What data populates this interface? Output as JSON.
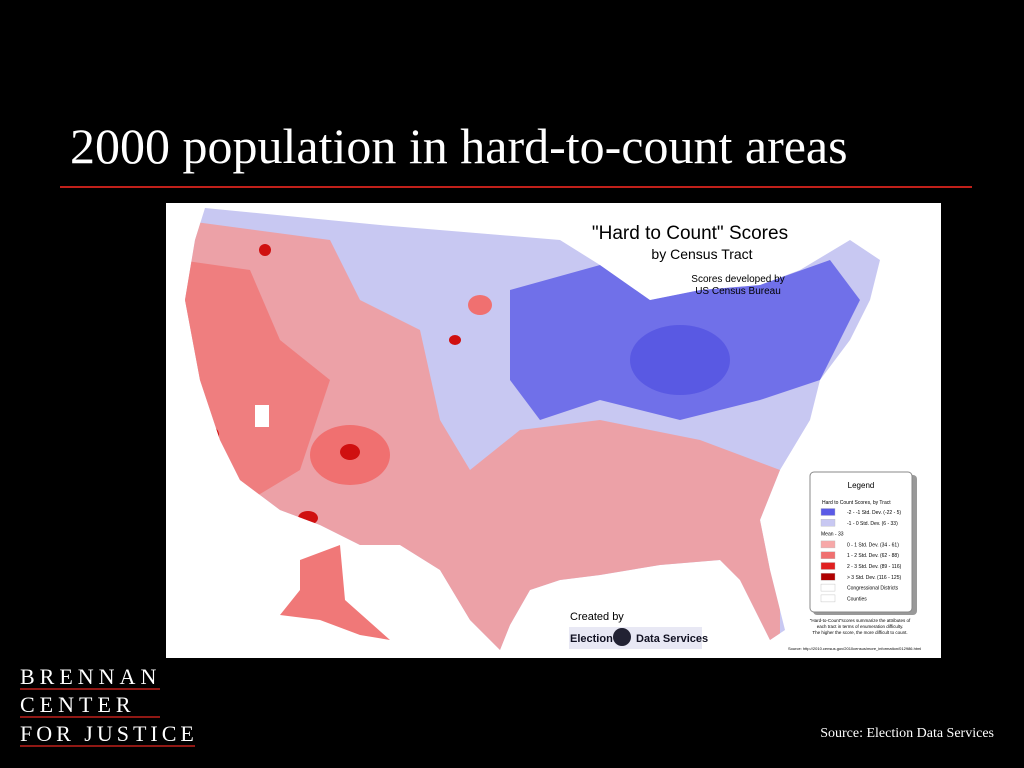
{
  "slide": {
    "title": "2000 population in hard-to-count areas",
    "map": {
      "title": "\"Hard to Count\" Scores",
      "subtitle": "by Census Tract",
      "credit": [
        "Scores developed by",
        "US Census Bureau"
      ],
      "created_by": "Created by",
      "creator": [
        "Election",
        "Data Services"
      ],
      "legend": {
        "title": "Legend",
        "heading": "Hard to Count Scores, by Tract",
        "items": [
          {
            "label": "-2 - -1 Std. Dev. (-22 - 5)",
            "color": "#5a5ae6"
          },
          {
            "label": "-1 - 0 Std. Dev. (6 - 33)",
            "color": "#c8c8f2"
          },
          {
            "label": "Mean - 33",
            "color": null
          },
          {
            "label": "0 - 1 Std. Dev. (34 - 61)",
            "color": "#f7a8a8"
          },
          {
            "label": "1 - 2 Std. Dev. (62 - 88)",
            "color": "#f07070"
          },
          {
            "label": "2 - 3 Std. Dev. (89 - 116)",
            "color": "#e02020"
          },
          {
            "label": "> 3 Std. Dev. (116 - 125)",
            "color": "#b00000"
          },
          {
            "label": "Congressional Districts",
            "color": "#ffffff"
          },
          {
            "label": "Counties",
            "color": "#ffffff"
          }
        ],
        "note": [
          "\"Hard-to-Count\"scores summarize the attributes of",
          "each tract in terms of enumeration difficulty.",
          "The higher the score, the more difficult to count."
        ]
      },
      "source": "Source: http://2010.census.gov/2010census/more_information/012986.html"
    },
    "logo": [
      "BRENNAN",
      "CENTER",
      "FOR JUSTICE"
    ],
    "source": "Source:  Election Data Services"
  }
}
